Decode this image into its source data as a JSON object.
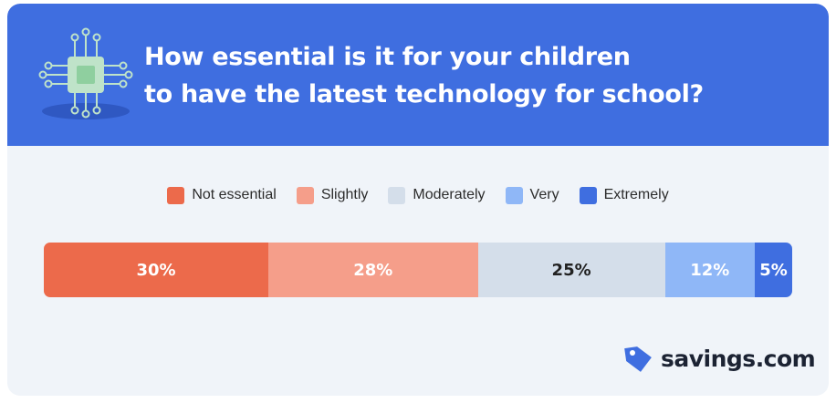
{
  "title_lines": [
    "How essential is it for your children",
    "to have the latest technology for school?"
  ],
  "icon": "circuit-chip-icon",
  "brand": {
    "name": "savings.com",
    "icon": "price-tag-icon"
  },
  "colors": {
    "header_bg": "#3f6ee0",
    "card_bg": "#f0f4f9"
  },
  "chart_data": {
    "type": "bar",
    "orientation": "horizontal-stacked-100",
    "title": "How essential is it for your children to have the latest technology for school?",
    "categories": [
      "Not essential",
      "Slightly",
      "Moderately",
      "Very",
      "Extremely"
    ],
    "values": [
      30,
      28,
      25,
      12,
      5
    ],
    "labels": [
      "30%",
      "28%",
      "25%",
      "12%",
      "5%"
    ],
    "colors": [
      "#ec6a4b",
      "#f59e8a",
      "#d4deea",
      "#8fb7f7",
      "#3f6ee0"
    ],
    "label_colors": [
      "#ffffff",
      "#ffffff",
      "#222222",
      "#ffffff",
      "#ffffff"
    ],
    "legend_position": "top-center",
    "grid": false
  }
}
